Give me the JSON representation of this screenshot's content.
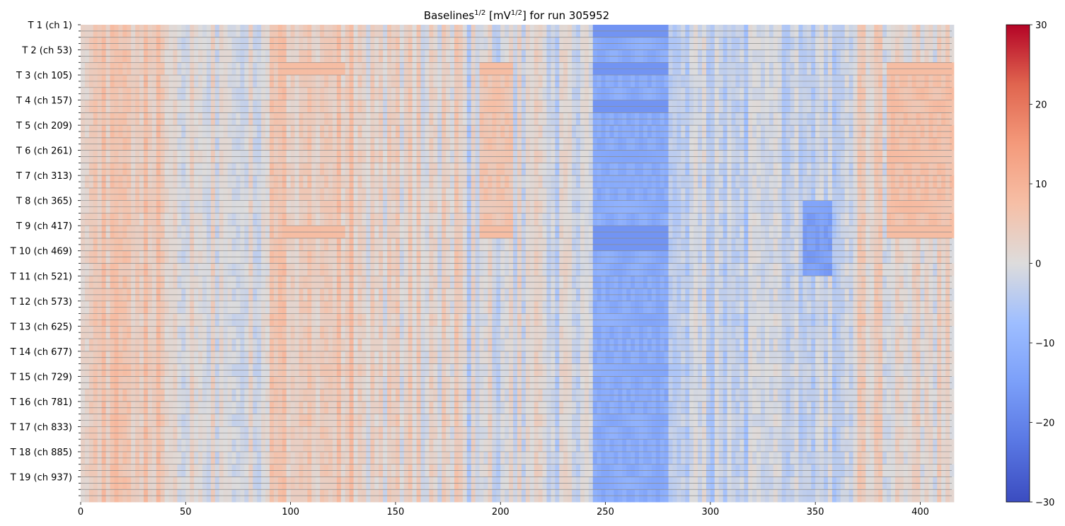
{
  "chart_data": {
    "type": "heatmap",
    "title": {
      "base": "Baselines",
      "exponent": "1/2",
      "unit_open": "[mV",
      "unit_exponent": "1/2",
      "unit_close": "] for run 305952"
    },
    "xlabel": "",
    "ylabel": "",
    "xlim": [
      0,
      415
    ],
    "x_ticks": [
      "0",
      "50",
      "100",
      "150",
      "200",
      "250",
      "300",
      "350",
      "400"
    ],
    "y_ticks": [
      "T 1 (ch 1)",
      "T 2 (ch 53)",
      "T 3 (ch 105)",
      "T 4 (ch 157)",
      "T 5 (ch 209)",
      "T 6 (ch 261)",
      "T 7 (ch 313)",
      "T 8 (ch 365)",
      "T 9 (ch 417)",
      "T 10 (ch 469)",
      "T 11 (ch 521)",
      "T 12 (ch 573)",
      "T 13 (ch 625)",
      "T 14 (ch 677)",
      "T 15 (ch 729)",
      "T 16 (ch 781)",
      "T 17 (ch 833)",
      "T 18 (ch 885)",
      "T 19 (ch 937)"
    ],
    "colormap": "coolwarm",
    "color_range": [
      -30,
      30
    ],
    "colorbar_ticks": [
      "30",
      "20",
      "10",
      "0",
      "−10",
      "−20",
      "−30"
    ],
    "row_bands": 38,
    "dark_band_rows": [
      0,
      3,
      6,
      16,
      17
    ],
    "blocks": [
      {
        "cols": [
          244,
          279
        ],
        "rows": "all",
        "value": -12
      },
      {
        "cols": [
          343,
          358
        ],
        "rows": [
          14,
          20
        ],
        "value": -15
      },
      {
        "cols": [
          383,
          415
        ],
        "rows": [
          3,
          16
        ],
        "value": 7
      },
      {
        "cols": [
          190,
          205
        ],
        "rows": [
          3,
          16
        ],
        "value": 6
      }
    ],
    "grid": false,
    "colors": {
      "row_separator": "#8c8c8c"
    }
  }
}
